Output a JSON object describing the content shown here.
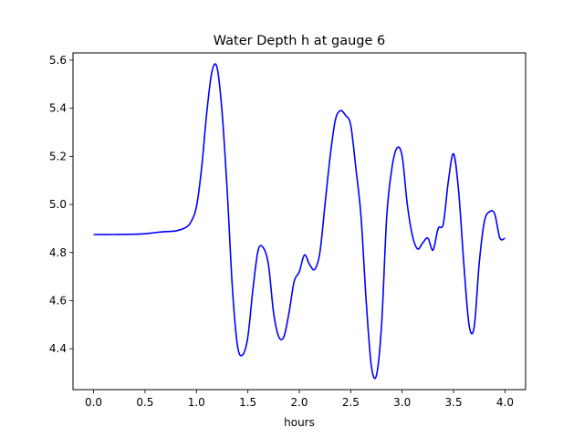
{
  "chart_data": {
    "type": "line",
    "title": "Water Depth h at gauge 6",
    "xlabel": "hours",
    "ylabel": "",
    "xlim": [
      -0.2,
      4.2
    ],
    "ylim": [
      4.23,
      5.63
    ],
    "xticks": [
      0.0,
      0.5,
      1.0,
      1.5,
      2.0,
      2.5,
      3.0,
      3.5,
      4.0
    ],
    "xtick_labels": [
      "0.0",
      "0.5",
      "1.0",
      "1.5",
      "2.0",
      "2.5",
      "3.0",
      "3.5",
      "4.0"
    ],
    "yticks": [
      4.4,
      4.6,
      4.8,
      5.0,
      5.2,
      5.4,
      5.6
    ],
    "ytick_labels": [
      "4.4",
      "4.6",
      "4.8",
      "5.0",
      "5.2",
      "5.4",
      "5.6"
    ],
    "grid": false,
    "legend": "none",
    "series": [
      {
        "color": "#0000ff",
        "x": [
          0.0,
          0.2,
          0.4,
          0.5,
          0.6,
          0.7,
          0.8,
          0.9,
          0.95,
          1.0,
          1.05,
          1.1,
          1.15,
          1.2,
          1.25,
          1.3,
          1.35,
          1.4,
          1.45,
          1.5,
          1.55,
          1.6,
          1.65,
          1.7,
          1.75,
          1.8,
          1.85,
          1.9,
          1.95,
          2.0,
          2.05,
          2.1,
          2.15,
          2.2,
          2.25,
          2.3,
          2.35,
          2.4,
          2.45,
          2.5,
          2.55,
          2.6,
          2.65,
          2.7,
          2.75,
          2.8,
          2.85,
          2.9,
          2.95,
          3.0,
          3.05,
          3.1,
          3.15,
          3.2,
          3.25,
          3.3,
          3.35,
          3.4,
          3.45,
          3.5,
          3.55,
          3.6,
          3.65,
          3.7,
          3.75,
          3.8,
          3.85,
          3.9,
          3.95,
          4.0
        ],
        "y": [
          4.875,
          4.875,
          4.876,
          4.878,
          4.883,
          4.887,
          4.89,
          4.905,
          4.93,
          4.99,
          5.15,
          5.38,
          5.55,
          5.57,
          5.38,
          5.05,
          4.65,
          4.41,
          4.375,
          4.45,
          4.65,
          4.81,
          4.82,
          4.75,
          4.55,
          4.45,
          4.45,
          4.55,
          4.68,
          4.72,
          4.79,
          4.75,
          4.73,
          4.8,
          5.0,
          5.2,
          5.35,
          5.39,
          5.37,
          5.33,
          5.15,
          4.95,
          4.6,
          4.33,
          4.29,
          4.5,
          4.95,
          5.15,
          5.235,
          5.2,
          5.0,
          4.87,
          4.815,
          4.84,
          4.86,
          4.81,
          4.9,
          4.92,
          5.1,
          5.21,
          5.05,
          4.75,
          4.5,
          4.49,
          4.76,
          4.93,
          4.97,
          4.96,
          4.86,
          4.86
        ]
      }
    ]
  }
}
